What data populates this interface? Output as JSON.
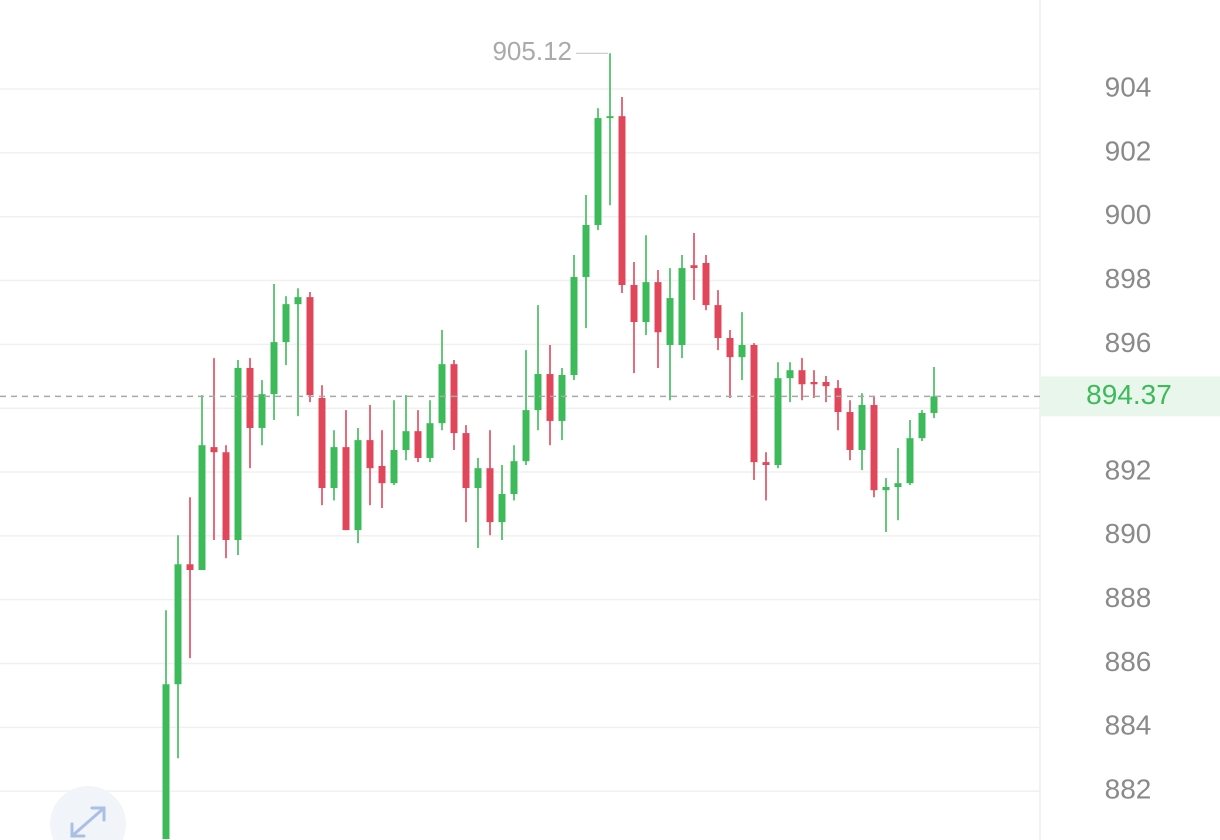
{
  "chart_data": {
    "type": "candlestick",
    "up_color": "#3dba5a",
    "down_color": "#e0475a",
    "grid": true,
    "ylim": [
      880.47,
      906.79
    ],
    "yticks": [
      882,
      884,
      886,
      888,
      890,
      892,
      894,
      896,
      898,
      900,
      902,
      904
    ],
    "last_price": 894.37,
    "max_marker": 905.12,
    "open": [
      880.5,
      885.35,
      889.11,
      888.93,
      892.78,
      892.62,
      889.87,
      895.26,
      893.38,
      894.44,
      896.07,
      897.26,
      897.48,
      894.32,
      891.5,
      892.78,
      890.18,
      893.0,
      892.19,
      891.65,
      892.69,
      893.28,
      892.44,
      893.53,
      895.38,
      893.22,
      891.5,
      892.12,
      890.43,
      891.31,
      892.34,
      893.94,
      895.07,
      893.6,
      895.04,
      898.11,
      899.74,
      903.09,
      903.15,
      897.86,
      896.7,
      897.95,
      895.98,
      895.98,
      898.48,
      898.55,
      897.23,
      896.2,
      895.6,
      895.98,
      892.31,
      892.22,
      894.94,
      895.19,
      894.82,
      894.82,
      894.63,
      893.88,
      892.69,
      894.1,
      891.43,
      891.53,
      891.65,
      893.06,
      893.85
    ],
    "high": [
      887.67,
      890.02,
      891.21,
      894.41,
      895.57,
      892.84,
      895.51,
      895.57,
      894.88,
      897.89,
      897.51,
      897.76,
      897.64,
      894.72,
      893.31,
      893.94,
      893.38,
      894.1,
      893.31,
      894.25,
      894.41,
      893.94,
      894.25,
      896.45,
      895.51,
      893.47,
      892.44,
      893.31,
      892.22,
      892.84,
      895.82,
      897.23,
      895.98,
      895.26,
      898.8,
      900.68,
      903.4,
      905.12,
      903.75,
      898.58,
      899.42,
      898.33,
      898.39,
      898.8,
      899.49,
      898.8,
      897.7,
      896.45,
      897.01,
      896.04,
      892.62,
      895.44,
      895.44,
      895.57,
      895.19,
      895.01,
      894.88,
      894.25,
      894.47,
      894.35,
      891.81,
      892.75,
      893.63,
      893.94,
      895.29
    ],
    "low": [
      880.5,
      883.03,
      886.17,
      888.93,
      889.87,
      889.3,
      889.4,
      892.12,
      892.84,
      893.63,
      895.35,
      893.75,
      894.19,
      890.96,
      891.11,
      890.18,
      889.77,
      890.96,
      890.87,
      891.59,
      892.37,
      892.31,
      892.31,
      893.31,
      892.69,
      890.43,
      889.62,
      890.02,
      889.87,
      891.11,
      892.22,
      893.31,
      892.84,
      893.0,
      894.88,
      896.51,
      899.58,
      900.36,
      897.61,
      895.1,
      896.29,
      895.26,
      894.25,
      895.57,
      897.39,
      897.07,
      895.82,
      894.32,
      894.88,
      891.75,
      891.11,
      892.12,
      894.19,
      894.25,
      894.32,
      894.19,
      893.31,
      892.37,
      892.06,
      891.21,
      890.12,
      890.49,
      891.59,
      892.97,
      893.69
    ],
    "close": [
      885.35,
      889.11,
      888.93,
      892.84,
      892.62,
      889.87,
      895.26,
      893.38,
      894.44,
      896.07,
      897.26,
      897.48,
      894.41,
      891.5,
      892.78,
      890.18,
      893.0,
      892.12,
      891.65,
      892.69,
      893.28,
      892.44,
      893.53,
      895.38,
      893.22,
      891.5,
      892.12,
      890.43,
      891.31,
      892.34,
      893.94,
      895.07,
      893.6,
      895.04,
      898.11,
      899.74,
      903.09,
      903.15,
      897.86,
      896.7,
      897.95,
      896.38,
      897.45,
      898.39,
      898.39,
      897.23,
      896.2,
      895.6,
      895.98,
      892.31,
      892.22,
      894.94,
      895.19,
      894.75,
      894.75,
      894.69,
      893.88,
      892.69,
      894.1,
      891.43,
      891.53,
      891.65,
      893.06,
      893.85,
      894.37
    ]
  }
}
